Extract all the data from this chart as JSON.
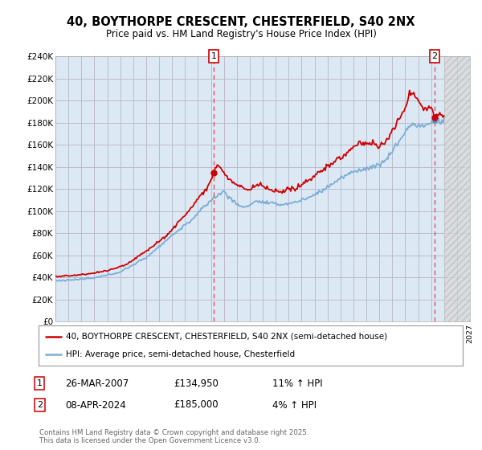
{
  "title": "40, BOYTHORPE CRESCENT, CHESTERFIELD, S40 2NX",
  "subtitle": "Price paid vs. HM Land Registry's House Price Index (HPI)",
  "ylim": [
    0,
    240000
  ],
  "xlim_start": 1995,
  "xlim_end": 2027,
  "sale1_date": 2007.23,
  "sale1_price": 134950,
  "sale1_label": "1",
  "sale1_date_str": "26-MAR-2007",
  "sale1_price_str": "£134,950",
  "sale1_hpi_str": "11% ↑ HPI",
  "sale2_date": 2024.27,
  "sale2_price": 185000,
  "sale2_label": "2",
  "sale2_date_str": "08-APR-2024",
  "sale2_price_str": "£185,000",
  "sale2_hpi_str": "4% ↑ HPI",
  "hpi_color": "#7dadd4",
  "price_color": "#cc0000",
  "vline_color": "#dd4444",
  "grid_color": "#bbbbcc",
  "chart_bg": "#dce9f5",
  "background_color": "#ffffff",
  "legend_label_price": "40, BOYTHORPE CRESCENT, CHESTERFIELD, S40 2NX (semi-detached house)",
  "legend_label_hpi": "HPI: Average price, semi-detached house, Chesterfield",
  "footnote": "Contains HM Land Registry data © Crown copyright and database right 2025.\nThis data is licensed under the Open Government Licence v3.0.",
  "hatch_bg": "#d8d8d8",
  "hatch_color": "#aaaaaa",
  "hatch_start": 2025.0
}
